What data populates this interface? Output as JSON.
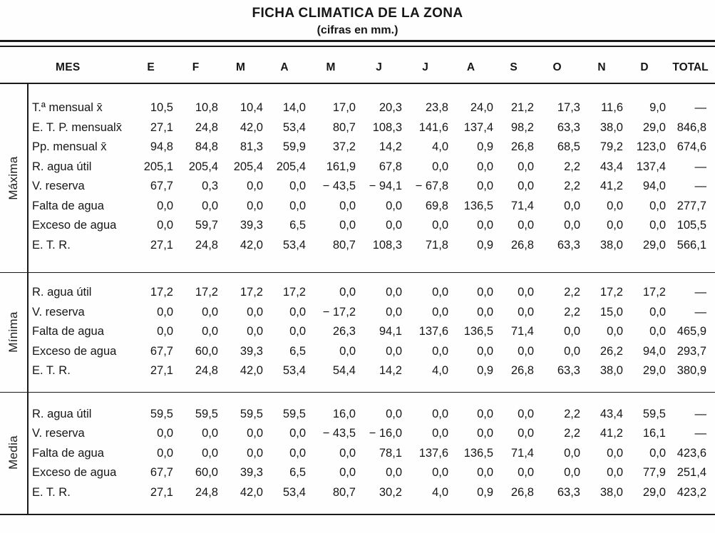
{
  "title": "FICHA CLIMATICA DE LA ZONA",
  "subtitle": "(cifras en mm.)",
  "colors": {
    "ink": "#1a1a1a",
    "paper": "#fefefe"
  },
  "table": {
    "row_header": "MES",
    "columns": [
      "E",
      "F",
      "M",
      "A",
      "M",
      "J",
      "J",
      "A",
      "S",
      "O",
      "N",
      "D",
      "TOTAL"
    ],
    "sections": [
      {
        "label": "Máxima",
        "rows": [
          {
            "label": "T.ª mensual x̄",
            "values": [
              "10,5",
              "10,8",
              "10,4",
              "14,0",
              "17,0",
              "20,3",
              "23,8",
              "24,0",
              "21,2",
              "17,3",
              "11,6",
              "9,0",
              "—"
            ]
          },
          {
            "label": "E. T. P. mensualx̄",
            "values": [
              "27,1",
              "24,8",
              "42,0",
              "53,4",
              "80,7",
              "108,3",
              "141,6",
              "137,4",
              "98,2",
              "63,3",
              "38,0",
              "29,0",
              "846,8"
            ]
          },
          {
            "label": "Pp. mensual x̄",
            "values": [
              "94,8",
              "84,8",
              "81,3",
              "59,9",
              "37,2",
              "14,2",
              "4,0",
              "0,9",
              "26,8",
              "68,5",
              "79,2",
              "123,0",
              "674,6"
            ]
          },
          {
            "label": "R. agua útil",
            "values": [
              "205,1",
              "205,4",
              "205,4",
              "205,4",
              "161,9",
              "67,8",
              "0,0",
              "0,0",
              "0,0",
              "2,2",
              "43,4",
              "137,4",
              "—"
            ]
          },
          {
            "label": "V. reserva",
            "values": [
              "67,7",
              "0,3",
              "0,0",
              "0,0",
              "− 43,5",
              "− 94,1",
              "− 67,8",
              "0,0",
              "0,0",
              "2,2",
              "41,2",
              "94,0",
              "—"
            ]
          },
          {
            "label": "Falta de agua",
            "values": [
              "0,0",
              "0,0",
              "0,0",
              "0,0",
              "0,0",
              "0,0",
              "69,8",
              "136,5",
              "71,4",
              "0,0",
              "0,0",
              "0,0",
              "277,7"
            ]
          },
          {
            "label": "Exceso de agua",
            "values": [
              "0,0",
              "59,7",
              "39,3",
              "6,5",
              "0,0",
              "0,0",
              "0,0",
              "0,0",
              "0,0",
              "0,0",
              "0,0",
              "0,0",
              "105,5"
            ]
          },
          {
            "label": "E. T. R.",
            "values": [
              "27,1",
              "24,8",
              "42,0",
              "53,4",
              "80,7",
              "108,3",
              "71,8",
              "0,9",
              "26,8",
              "63,3",
              "38,0",
              "29,0",
              "566,1"
            ]
          }
        ]
      },
      {
        "label": "Mínima",
        "rows": [
          {
            "label": "R. agua útil",
            "values": [
              "17,2",
              "17,2",
              "17,2",
              "17,2",
              "0,0",
              "0,0",
              "0,0",
              "0,0",
              "0,0",
              "2,2",
              "17,2",
              "17,2",
              "—"
            ]
          },
          {
            "label": "V. reserva",
            "values": [
              "0,0",
              "0,0",
              "0,0",
              "0,0",
              "− 17,2",
              "0,0",
              "0,0",
              "0,0",
              "0,0",
              "2,2",
              "15,0",
              "0,0",
              "—"
            ]
          },
          {
            "label": "Falta de agua",
            "values": [
              "0,0",
              "0,0",
              "0,0",
              "0,0",
              "26,3",
              "94,1",
              "137,6",
              "136,5",
              "71,4",
              "0,0",
              "0,0",
              "0,0",
              "465,9"
            ]
          },
          {
            "label": "Exceso de agua",
            "values": [
              "67,7",
              "60,0",
              "39,3",
              "6,5",
              "0,0",
              "0,0",
              "0,0",
              "0,0",
              "0,0",
              "0,0",
              "26,2",
              "94,0",
              "293,7"
            ]
          },
          {
            "label": "E. T. R.",
            "values": [
              "27,1",
              "24,8",
              "42,0",
              "53,4",
              "54,4",
              "14,2",
              "4,0",
              "0,9",
              "26,8",
              "63,3",
              "38,0",
              "29,0",
              "380,9"
            ]
          }
        ]
      },
      {
        "label": "Media",
        "rows": [
          {
            "label": "R. agua útil",
            "values": [
              "59,5",
              "59,5",
              "59,5",
              "59,5",
              "16,0",
              "0,0",
              "0,0",
              "0,0",
              "0,0",
              "2,2",
              "43,4",
              "59,5",
              "—"
            ]
          },
          {
            "label": "V. reserva",
            "values": [
              "0,0",
              "0,0",
              "0,0",
              "0,0",
              "− 43,5",
              "− 16,0",
              "0,0",
              "0,0",
              "0,0",
              "2,2",
              "41,2",
              "16,1",
              "—"
            ]
          },
          {
            "label": "Falta de agua",
            "values": [
              "0,0",
              "0,0",
              "0,0",
              "0,0",
              "0,0",
              "78,1",
              "137,6",
              "136,5",
              "71,4",
              "0,0",
              "0,0",
              "0,0",
              "423,6"
            ]
          },
          {
            "label": "Exceso de agua",
            "values": [
              "67,7",
              "60,0",
              "39,3",
              "6,5",
              "0,0",
              "0,0",
              "0,0",
              "0,0",
              "0,0",
              "0,0",
              "0,0",
              "77,9",
              "251,4"
            ]
          },
          {
            "label": "E. T. R.",
            "values": [
              "27,1",
              "24,8",
              "42,0",
              "53,4",
              "80,7",
              "30,2",
              "4,0",
              "0,9",
              "26,8",
              "63,3",
              "38,0",
              "29,0",
              "423,2"
            ]
          }
        ]
      }
    ]
  }
}
